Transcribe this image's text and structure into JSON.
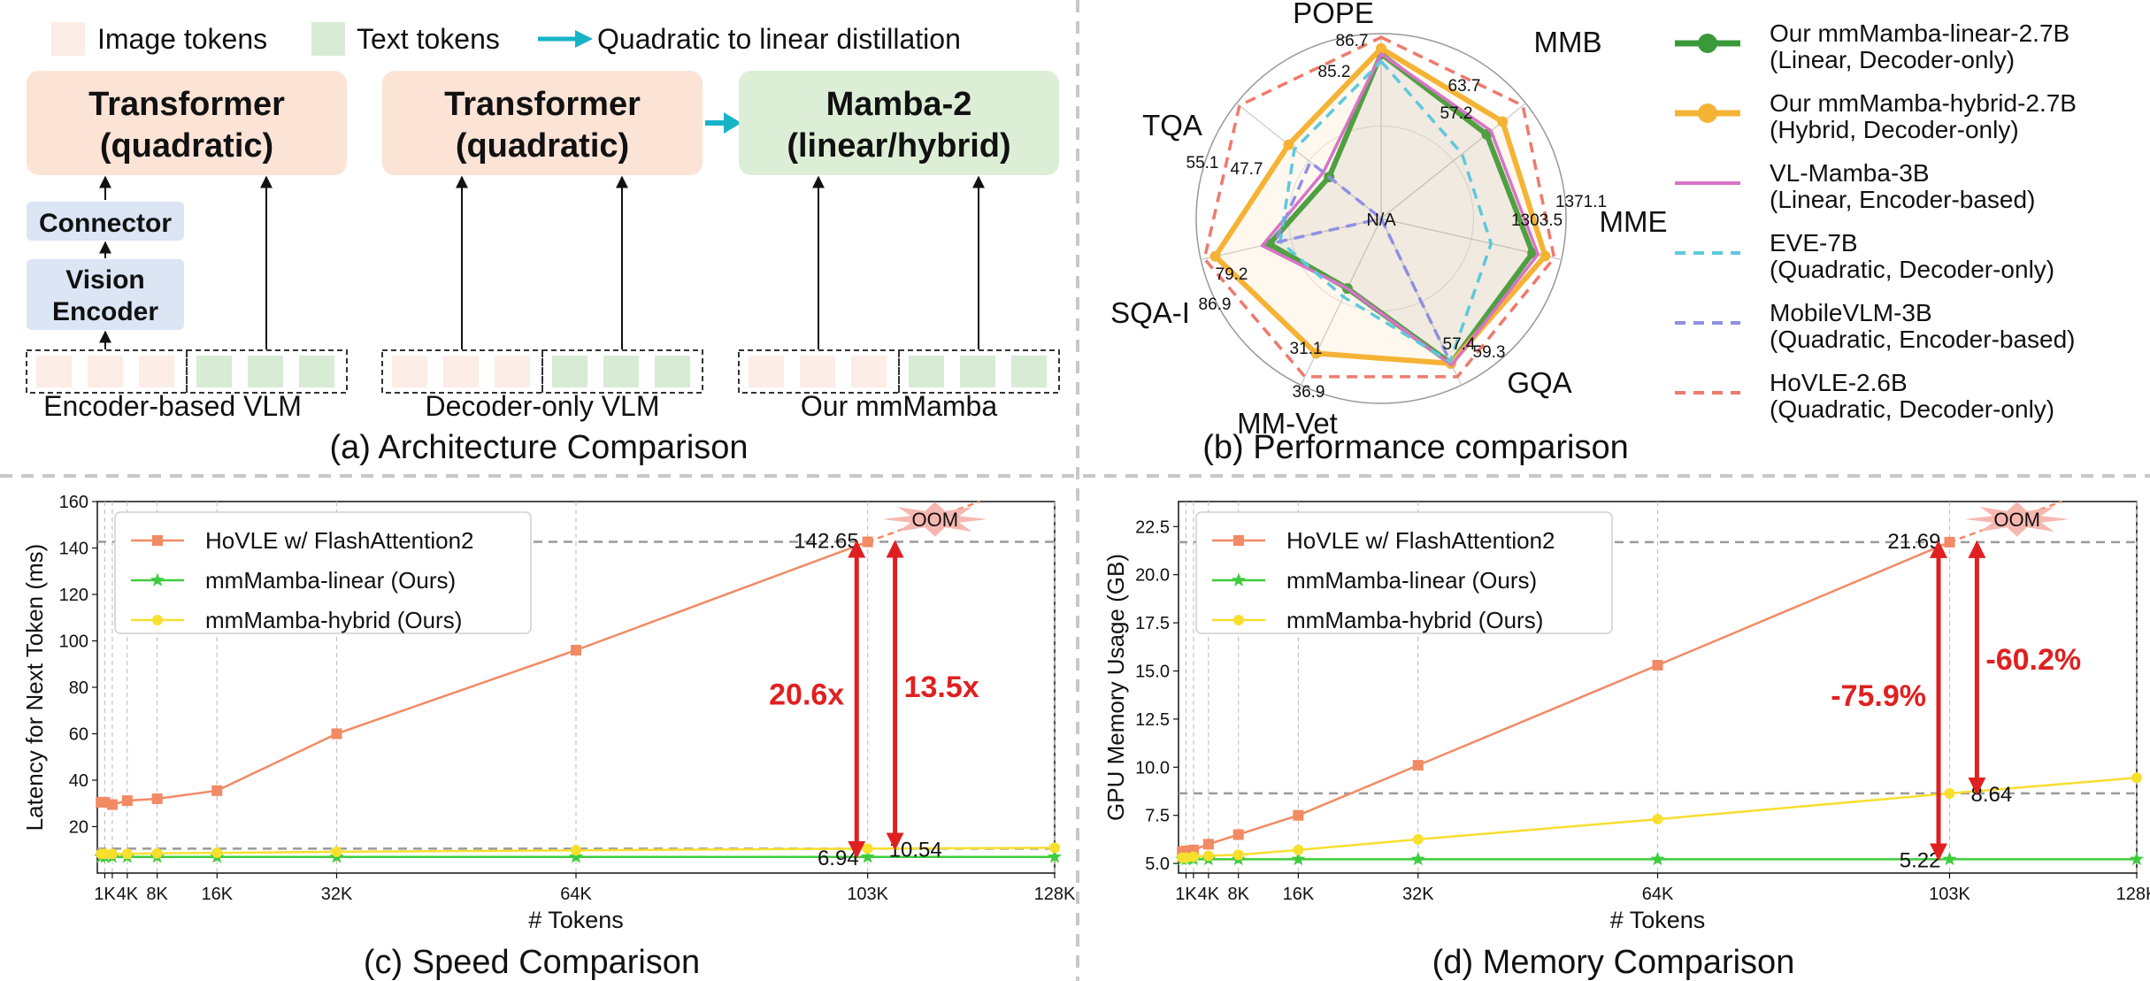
{
  "panel_a": {
    "caption": "(a) Architecture Comparison",
    "legend": {
      "image_tokens": "Image tokens",
      "text_tokens": "Text tokens",
      "distill": "Quadratic to linear distillation"
    },
    "enc": {
      "transformer_l1": "Transformer",
      "transformer_l2": "(quadratic)",
      "connector": "Connector",
      "vision_l1": "Vision",
      "vision_l2": "Encoder",
      "label": "Encoder-based VLM"
    },
    "dec": {
      "transformer_l1": "Transformer",
      "transformer_l2": "(quadratic)",
      "label": "Decoder-only VLM"
    },
    "mm": {
      "mamba_l1": "Mamba-2",
      "mamba_l2": "(linear/hybrid)",
      "label": "Our mmMamba"
    },
    "colors": {
      "image_token": "#fcede6",
      "text_token": "#d8ebd5",
      "transformer": "#fbe3d6",
      "mamba": "#dcefd6",
      "encoder": "#dbe5f4",
      "distill_arrow": "#17b4c8"
    }
  },
  "panel_b": {
    "caption": "(b) Performance comparison",
    "center_label": "N/A",
    "legend": [
      {
        "l1": "Our mmMamba-linear-2.7B",
        "l2": "(Linear, Decoder-only)"
      },
      {
        "l1": "Our mmMamba-hybrid-2.7B",
        "l2": "(Hybrid, Decoder-only)"
      },
      {
        "l1": "VL-Mamba-3B",
        "l2": "(Linear, Encoder-based)"
      },
      {
        "l1": "EVE-7B",
        "l2": "(Quadratic, Decoder-only)"
      },
      {
        "l1": "MobileVLM-3B",
        "l2": "(Quadratic, Encoder-based)"
      },
      {
        "l1": "HoVLE-2.6B",
        "l2": "(Quadratic, Decoder-only)"
      }
    ]
  },
  "chart_data": [
    {
      "type": "radar",
      "axes": [
        "POPE",
        "MMB",
        "MME",
        "GQA",
        "MM-Vet",
        "SQA-I",
        "TQA"
      ],
      "value_labels": [
        "86.7",
        "85.2",
        "63.7",
        "57.2",
        "1371.1",
        "1303.5",
        "59.3",
        "57.4",
        "36.9",
        "31.1",
        "86.9",
        "79.2",
        "55.1",
        "47.7"
      ],
      "series": [
        {
          "name": "Our mmMamba-linear-2.7B",
          "color": "#3a9a3a",
          "style": "solid-marker",
          "r": [
            0.89,
            0.73,
            0.84,
            0.87,
            0.42,
            0.62,
            0.36
          ]
        },
        {
          "name": "Our mmMamba-hybrid-2.7B",
          "color": "#f5b335",
          "style": "solid-marker",
          "r": [
            0.92,
            0.84,
            0.91,
            0.87,
            0.81,
            0.92,
            0.64
          ]
        },
        {
          "name": "VL-Mamba-3B",
          "color": "#d873c8",
          "style": "solid",
          "r": [
            0.89,
            0.76,
            0.87,
            0.88,
            0.42,
            0.66,
            0.4
          ]
        },
        {
          "name": "EVE-7B",
          "color": "#5fc8dc",
          "style": "dashed",
          "r": [
            0.85,
            0.56,
            0.61,
            0.86,
            0.47,
            0.56,
            0.6
          ]
        },
        {
          "name": "MobileVLM-3B",
          "color": "#8f8fe6",
          "style": "dashed",
          "r": [
            0.0,
            0.0,
            0.0,
            0.84,
            0.0,
            0.59,
            0.49
          ]
        },
        {
          "name": "HoVLE-2.6B",
          "color": "#ee7a6c",
          "style": "dashed",
          "r": [
            0.98,
            0.98,
            0.96,
            0.95,
            0.95,
            0.98,
            0.98
          ]
        }
      ]
    },
    {
      "type": "line",
      "caption": "(c) Speed Comparison",
      "xlabel": "# Tokens",
      "ylabel": "Latency for Next Token (ms)",
      "xlim": [
        0,
        128
      ],
      "ylim": [
        0,
        160
      ],
      "xticks": [
        {
          "v": 1,
          "label": "1K"
        },
        {
          "v": 2,
          "label": ""
        },
        {
          "v": 4,
          "label": "4K"
        },
        {
          "v": 8,
          "label": "8K"
        },
        {
          "v": 16,
          "label": "16K"
        },
        {
          "v": 32,
          "label": "32K"
        },
        {
          "v": 64,
          "label": "64K"
        },
        {
          "v": 103,
          "label": "103K"
        },
        {
          "v": 128,
          "label": "128K"
        }
      ],
      "yticks": [
        20,
        40,
        60,
        80,
        100,
        120,
        140,
        160
      ],
      "series": [
        {
          "name": "HoVLE w/ FlashAttention2",
          "color": "#f28a64",
          "marker": "square",
          "x": [
            0.5,
            1,
            2,
            4,
            8,
            16,
            32,
            64,
            103
          ],
          "y": [
            30.5,
            30.5,
            29.5,
            31.2,
            32.0,
            35.5,
            60.0,
            96.0,
            142.65
          ]
        },
        {
          "name": "mmMamba-linear (Ours)",
          "color": "#3dcc3d",
          "marker": "star",
          "x": [
            0.5,
            1,
            2,
            4,
            8,
            16,
            32,
            64,
            103,
            128
          ],
          "y": [
            6.94,
            6.94,
            6.94,
            6.94,
            6.94,
            6.94,
            6.94,
            6.94,
            6.94,
            6.94
          ]
        },
        {
          "name": "mmMamba-hybrid (Ours)",
          "color": "#f7df2e",
          "marker": "circle",
          "x": [
            0.5,
            1,
            2,
            4,
            8,
            16,
            32,
            64,
            103,
            128
          ],
          "y": [
            8.3,
            8.3,
            8.3,
            8.3,
            8.5,
            8.7,
            9.2,
            9.8,
            10.54,
            10.9
          ]
        }
      ],
      "oom": {
        "label": "OOM",
        "x_end": 118,
        "y_end": 160
      },
      "hlines": [
        142.65,
        10.54
      ],
      "annotations": [
        {
          "text": "142.65",
          "x": 103,
          "y": 142.65
        },
        {
          "text": "10.54",
          "x": 103,
          "y": 10.54
        },
        {
          "text": "6.94",
          "x": 103,
          "y": 6.94
        }
      ],
      "arrows": [
        {
          "x": 102,
          "from": 6.94,
          "to": 142.65,
          "label": "20.6x",
          "side": "left"
        },
        {
          "x": 105,
          "from": 10.54,
          "to": 142.65,
          "label": "13.5x",
          "side": "right"
        }
      ]
    },
    {
      "type": "line",
      "caption": "(d) Memory Comparison",
      "xlabel": "# Tokens",
      "ylabel": "GPU Memory Usage (GB)",
      "xlim": [
        0,
        128
      ],
      "ylim": [
        4.5,
        23.8
      ],
      "xticks": [
        {
          "v": 1,
          "label": "1K"
        },
        {
          "v": 2,
          "label": ""
        },
        {
          "v": 4,
          "label": "4K"
        },
        {
          "v": 8,
          "label": "8K"
        },
        {
          "v": 16,
          "label": "16K"
        },
        {
          "v": 32,
          "label": "32K"
        },
        {
          "v": 64,
          "label": "64K"
        },
        {
          "v": 103,
          "label": "103K"
        },
        {
          "v": 128,
          "label": "128K"
        }
      ],
      "yticks": [
        5.0,
        7.5,
        10.0,
        12.5,
        15.0,
        17.5,
        20.0,
        22.5
      ],
      "ytick_labels": [
        "5.0",
        "7.5",
        "10.0",
        "12.5",
        "15.0",
        "17.5",
        "20.0",
        "22.5"
      ],
      "series": [
        {
          "name": "HoVLE w/ FlashAttention2",
          "color": "#f28a64",
          "marker": "square",
          "x": [
            0.5,
            1,
            2,
            4,
            8,
            16,
            32,
            64,
            103
          ],
          "y": [
            5.6,
            5.65,
            5.7,
            6.0,
            6.5,
            7.5,
            10.1,
            15.3,
            21.69
          ]
        },
        {
          "name": "mmMamba-linear (Ours)",
          "color": "#3dcc3d",
          "marker": "star",
          "x": [
            0.5,
            1,
            2,
            4,
            8,
            16,
            32,
            64,
            103,
            128
          ],
          "y": [
            5.22,
            5.22,
            5.22,
            5.22,
            5.22,
            5.22,
            5.22,
            5.22,
            5.22,
            5.22
          ]
        },
        {
          "name": "mmMamba-hybrid (Ours)",
          "color": "#f7df2e",
          "marker": "circle",
          "x": [
            0.5,
            1,
            2,
            4,
            8,
            16,
            32,
            64,
            103,
            128
          ],
          "y": [
            5.3,
            5.3,
            5.35,
            5.4,
            5.45,
            5.7,
            6.25,
            7.3,
            8.64,
            9.45
          ]
        }
      ],
      "oom": {
        "label": "OOM",
        "x_end": 118,
        "y_end": 23.8
      },
      "hlines": [
        21.69,
        8.64
      ],
      "annotations": [
        {
          "text": "21.69",
          "x": 103,
          "y": 21.69
        },
        {
          "text": "8.64",
          "x": 103,
          "y": 8.64
        },
        {
          "text": "5.22",
          "x": 103,
          "y": 5.22
        }
      ],
      "arrows": [
        {
          "x": 102,
          "from": 5.22,
          "to": 21.69,
          "label": "-75.9%",
          "side": "left"
        },
        {
          "x": 105,
          "from": 8.64,
          "to": 21.69,
          "label": "-60.2%",
          "side": "right"
        }
      ]
    }
  ]
}
